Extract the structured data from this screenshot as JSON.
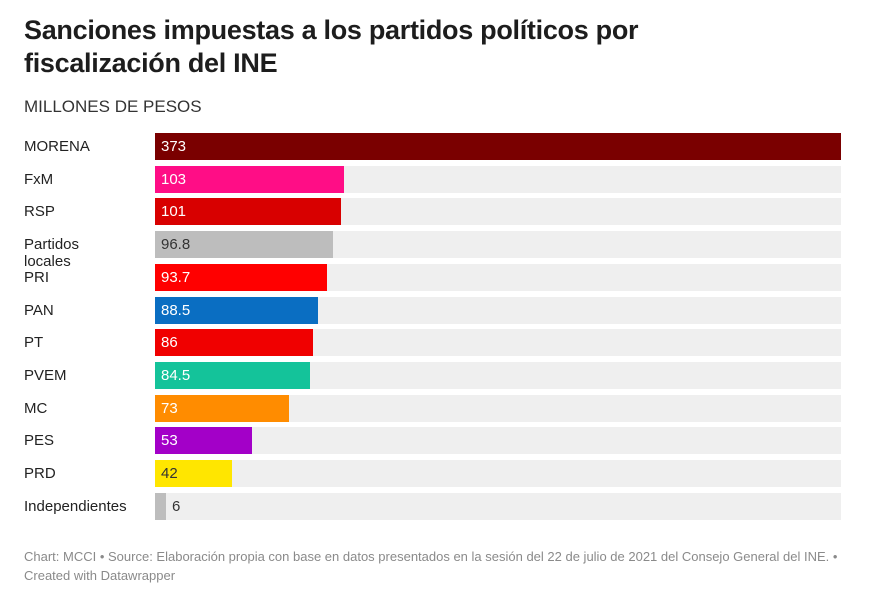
{
  "chart_data": {
    "type": "bar",
    "orientation": "horizontal",
    "title": "Sanciones impuestas a los partidos políticos por fiscalización del INE",
    "subtitle": "MILLONES DE PESOS",
    "categories": [
      "MORENA",
      "FxM",
      "RSP",
      "Partidos locales",
      "PRI",
      "PAN",
      "PT",
      "PVEM",
      "MC",
      "PES",
      "PRD",
      "Independientes"
    ],
    "values": [
      373,
      103,
      101,
      96.8,
      93.7,
      88.5,
      86,
      84.5,
      73,
      53,
      42,
      6
    ],
    "value_labels": [
      "373",
      "103",
      "101",
      "96.8",
      "93.7",
      "88.5",
      "86",
      "84.5",
      "73",
      "53",
      "42",
      "6"
    ],
    "colors": [
      "#7a0000",
      "#ff0d86",
      "#d80000",
      "#bdbdbd",
      "#ff0000",
      "#0a6ec2",
      "#f00000",
      "#14c39a",
      "#ff8c00",
      "#a300c8",
      "#ffe600",
      "#bdbdbd"
    ],
    "label_colors": [
      "#ffffff",
      "#ffffff",
      "#ffffff",
      "#333333",
      "#ffffff",
      "#ffffff",
      "#ffffff",
      "#ffffff",
      "#ffffff",
      "#ffffff",
      "#333333",
      "#333333"
    ],
    "xlim": [
      0,
      373
    ],
    "track_color": "#efefef"
  },
  "footer": "Chart: MCCI • Source: Elaboración propia con base en datos presentados en la sesión del 22 de julio de 2021 del Consejo General del INE. • Created with Datawrapper"
}
